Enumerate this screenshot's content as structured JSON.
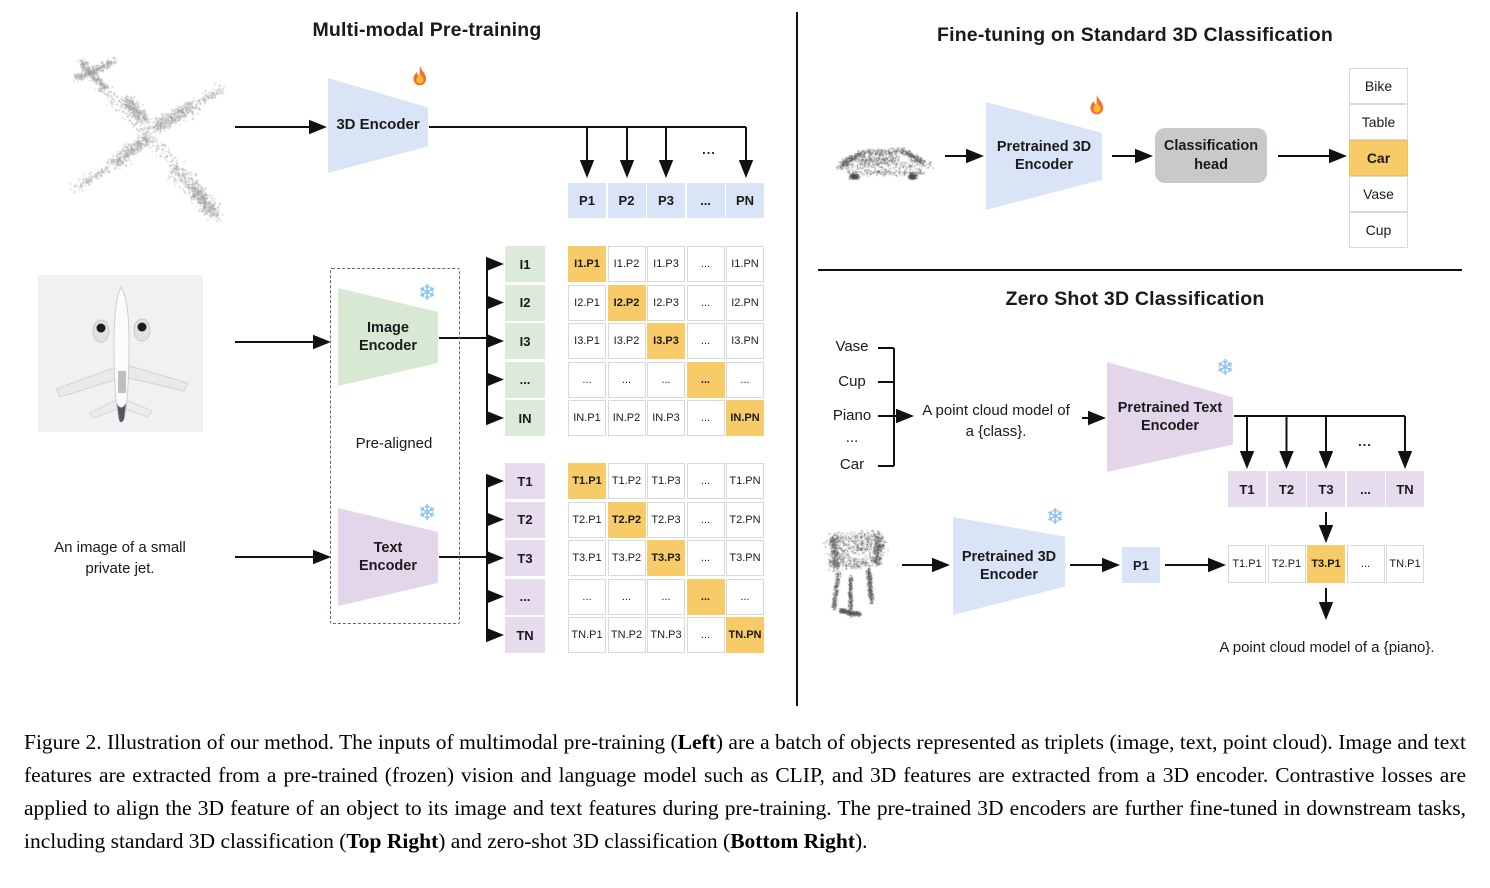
{
  "misc": {
    "ellipsis": "..."
  },
  "colors": {
    "blue": "#d9e4f7",
    "green": "#d7e8d3",
    "purple": "#e3d6ea",
    "label_green": "#dbeada",
    "label_purple": "#e6dcee",
    "orange": "#f7cb68",
    "head_gray": "#c8c9ca",
    "line_black": "#111111",
    "cloud_gray": "#a5a5a5",
    "cloud_dark": "#4f4f4f",
    "photo_bg": "#f1f1f3"
  },
  "icons": {
    "fire": "fire-icon",
    "snowflake": "snowflake-icon",
    "snowflake_glyph": "❄"
  },
  "pretraining": {
    "title": "Multi-modal Pre-training",
    "encoder3d_label": "3D Encoder",
    "image_encoder_label": [
      "Image",
      "Encoder"
    ],
    "text_encoder_label": [
      "Text",
      "Encoder"
    ],
    "pre_aligned_label": "Pre-aligned",
    "image_caption_lines": [
      "An image of a small",
      "private jet."
    ],
    "p_cells": [
      "P1",
      "P2",
      "P3",
      "...",
      "PN"
    ],
    "i_labels": [
      "I1",
      "I2",
      "I3",
      "...",
      "IN"
    ],
    "t_labels": [
      "T1",
      "T2",
      "T3",
      "...",
      "TN"
    ],
    "i_matrix": [
      [
        "I1.P1",
        "I1.P2",
        "I1.P3",
        "...",
        "I1.PN"
      ],
      [
        "I2.P1",
        "I2.P2",
        "I2.P3",
        "...",
        "I2.PN"
      ],
      [
        "I3.P1",
        "I3.P2",
        "I3.P3",
        "...",
        "I3.PN"
      ],
      [
        "...",
        "...",
        "...",
        "...",
        "..."
      ],
      [
        "IN.P1",
        "IN.P2",
        "IN.P3",
        "...",
        "IN.PN"
      ]
    ],
    "t_matrix": [
      [
        "T1.P1",
        "T1.P2",
        "T1.P3",
        "...",
        "T1.PN"
      ],
      [
        "T2.P1",
        "T2.P2",
        "T2.P3",
        "...",
        "T2.PN"
      ],
      [
        "T3.P1",
        "T3.P2",
        "T3.P3",
        "...",
        "T3.PN"
      ],
      [
        "...",
        "...",
        "...",
        "...",
        "..."
      ],
      [
        "TN.P1",
        "TN.P2",
        "TN.P3",
        "...",
        "TN.PN"
      ]
    ]
  },
  "finetune": {
    "title": "Fine-tuning on Standard 3D Classification",
    "encoder_label": [
      "Pretrained 3D",
      "Encoder"
    ],
    "head_label": [
      "Classification",
      "head"
    ],
    "classes": [
      "Bike",
      "Table",
      "Car",
      "Vase",
      "Cup"
    ],
    "highlight_index": 2
  },
  "zeroshot": {
    "title": "Zero Shot 3D Classification",
    "classes": [
      "Vase",
      "Cup",
      "Piano",
      "...",
      "Car"
    ],
    "prompt_lines": [
      "A point cloud model of",
      "a {class}."
    ],
    "text_encoder_label": [
      "Pretrained Text",
      "Encoder"
    ],
    "t_cells": [
      "T1",
      "T2",
      "T3",
      "...",
      "TN"
    ],
    "encoder3d_label": [
      "Pretrained 3D",
      "Encoder"
    ],
    "p1_label": "P1",
    "match_cells": [
      "T1.P1",
      "T2.P1",
      "T3.P1",
      "...",
      "TN.P1"
    ],
    "match_highlight_index": 2,
    "result_text": "A point cloud model of a {piano}."
  },
  "caption": {
    "segments": [
      {
        "text": "Figure 2. Illustration of our method. The inputs of multimodal pre-training (",
        "bold": false
      },
      {
        "text": "Left",
        "bold": true
      },
      {
        "text": ") are a batch of objects represented as triplets (image, text, point cloud).  Image and text features are extracted from a pre-trained (frozen) vision and language model such as CLIP, and 3D features are extracted from a 3D encoder.  Contrastive losses are applied to align the 3D feature of an object to its image and text features during pre-training.  The pre-trained 3D encoders are further fine-tuned in downstream tasks, including standard 3D classification (",
        "bold": false
      },
      {
        "text": "Top Right",
        "bold": true
      },
      {
        "text": ") and zero-shot 3D classification (",
        "bold": false
      },
      {
        "text": "Bottom Right",
        "bold": true
      },
      {
        "text": ").",
        "bold": false
      }
    ]
  }
}
